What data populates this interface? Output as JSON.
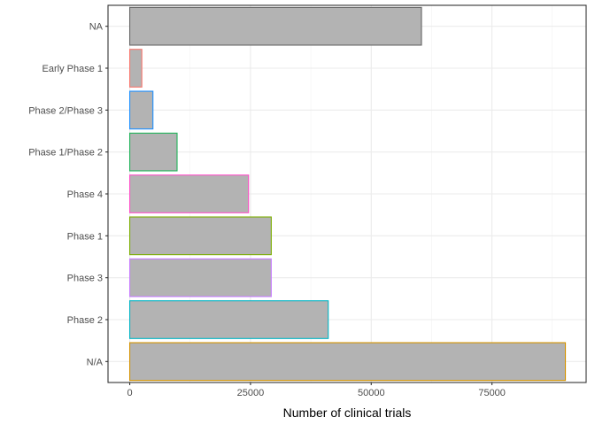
{
  "chart_data": {
    "type": "bar",
    "orientation": "horizontal",
    "title": "",
    "xlabel": "Number of clinical trials",
    "ylabel": "",
    "xlim": [
      -4500,
      94500
    ],
    "xticks": [
      0,
      25000,
      50000,
      75000
    ],
    "xtick_labels": [
      "0",
      "25000",
      "50000",
      "75000"
    ],
    "grid": true,
    "legend": "none",
    "bar_fill": "#b3b3b3",
    "categories": [
      "NA",
      "Early Phase 1",
      "Phase 2/Phase 3",
      "Phase 1/Phase 2",
      "Phase 4",
      "Phase 1",
      "Phase 3",
      "Phase 2",
      "N/A"
    ],
    "values": [
      60400,
      2500,
      4800,
      9800,
      24600,
      29300,
      29300,
      41100,
      90200
    ],
    "outline_colors": [
      "#666666",
      "#F8766D",
      "#1E90FF",
      "#20B35A",
      "#FF4FC8",
      "#7CAE00",
      "#C77CFF",
      "#00B4C4",
      "#D39200"
    ]
  }
}
